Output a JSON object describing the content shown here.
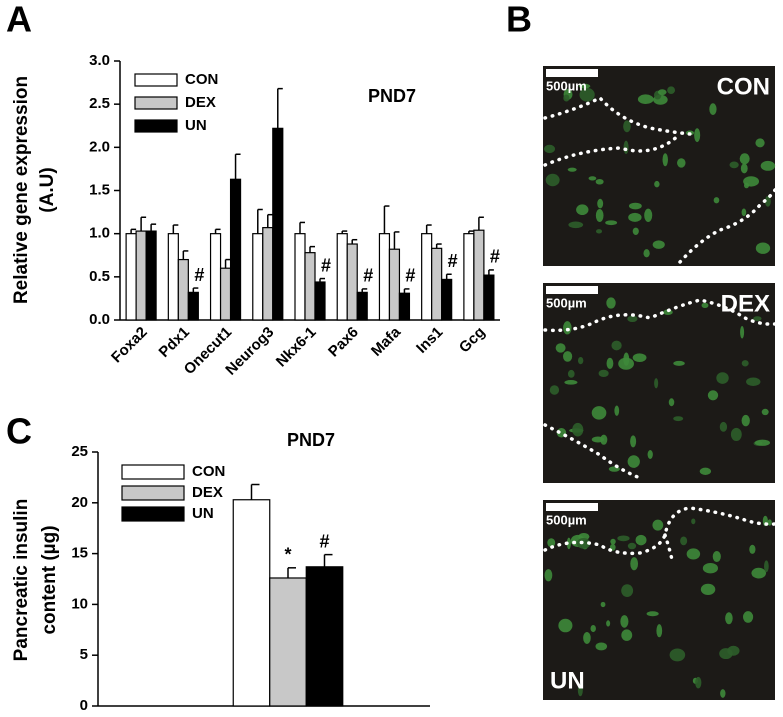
{
  "panel_labels": [
    "A",
    "B",
    "C"
  ],
  "chart_data": [
    {
      "type": "bar",
      "title": "PND7",
      "ylabel": [
        "Relative gene expression",
        "(A.U)"
      ],
      "categories": [
        "Foxa2",
        "Pdx1",
        "Onecut1",
        "Neurog3",
        "Nkx6-1",
        "Pax6",
        "Mafa",
        "Ins1",
        "Gcg"
      ],
      "series": [
        {
          "name": "CON",
          "color": "#ffffff",
          "values": [
            1.0,
            1.0,
            1.0,
            1.0,
            1.0,
            1.0,
            1.0,
            1.0,
            1.0
          ],
          "errors": [
            0.05,
            0.1,
            0.05,
            0.28,
            0.13,
            0.03,
            0.32,
            0.1,
            0.03
          ]
        },
        {
          "name": "DEX",
          "color": "#c8c8c8",
          "values": [
            1.03,
            0.7,
            0.6,
            1.07,
            0.78,
            0.88,
            0.82,
            0.83,
            1.04
          ],
          "errors": [
            0.16,
            0.1,
            0.1,
            0.15,
            0.07,
            0.05,
            0.2,
            0.05,
            0.15
          ]
        },
        {
          "name": "UN",
          "color": "#000000",
          "values": [
            1.03,
            0.32,
            1.63,
            2.22,
            0.44,
            0.32,
            0.31,
            0.47,
            0.52
          ],
          "errors": [
            0.08,
            0.05,
            0.29,
            0.46,
            0.04,
            0.04,
            0.05,
            0.06,
            0.06
          ],
          "significance": [
            null,
            "#",
            null,
            null,
            "#",
            "#",
            "#",
            "#",
            "#"
          ]
        }
      ],
      "ylim": [
        0,
        3
      ],
      "yticks": [
        {
          "value": 0,
          "label": "0.0"
        },
        0.5,
        {
          "value": 1,
          "label": "1.0"
        },
        1.5,
        {
          "value": 2,
          "label": "2.0"
        },
        2.5,
        {
          "value": 3,
          "label": "3.0"
        }
      ],
      "grid": false,
      "legend": "upper-left"
    },
    {
      "type": "bar",
      "title": "PND7",
      "ylabel": [
        "Pancreatic insulin",
        "content (µg)"
      ],
      "categories": [
        null
      ],
      "series": [
        {
          "name": "CON",
          "color": "#ffffff",
          "values": [
            20.3
          ],
          "errors": [
            1.5
          ]
        },
        {
          "name": "DEX",
          "color": "#c8c8c8",
          "values": [
            12.6
          ],
          "errors": [
            1.0
          ],
          "significance": [
            "*"
          ]
        },
        {
          "name": "UN",
          "color": "#000000",
          "values": [
            13.7
          ],
          "errors": [
            1.2
          ],
          "significance": [
            "#"
          ]
        }
      ],
      "ylim": [
        0,
        25
      ],
      "yticks": [
        0,
        5,
        10,
        15,
        20,
        25
      ],
      "grid": false,
      "legend": "upper-left"
    }
  ],
  "images": [
    {
      "label": "CON",
      "scale_bar": "500µm"
    },
    {
      "label": "DEX",
      "scale_bar": "500µm"
    },
    {
      "label": "UN",
      "scale_bar": "500µm"
    }
  ]
}
